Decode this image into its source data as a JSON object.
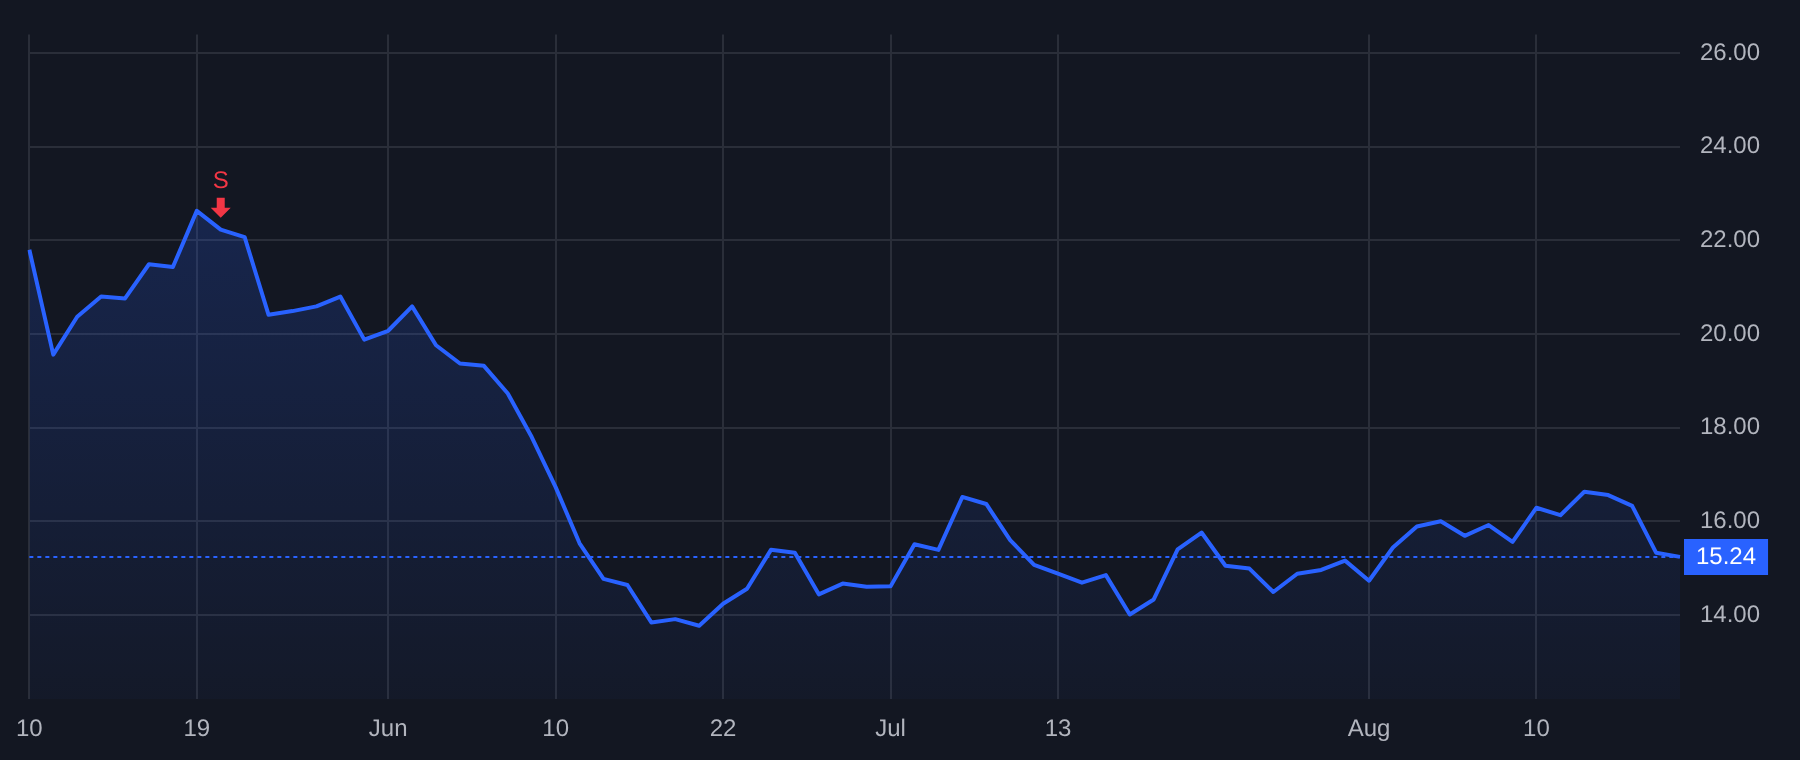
{
  "chart_data": {
    "type": "area",
    "categories": [
      "10",
      null,
      null,
      null,
      null,
      null,
      null,
      "19",
      null,
      null,
      null,
      null,
      null,
      null,
      null,
      "Jun",
      null,
      null,
      null,
      null,
      null,
      null,
      "10",
      null,
      null,
      null,
      null,
      null,
      null,
      "22",
      null,
      null,
      null,
      null,
      null,
      null,
      "Jul",
      null,
      null,
      null,
      null,
      null,
      null,
      "13",
      null,
      null,
      null,
      null,
      null,
      null,
      null,
      null,
      null,
      null,
      null,
      null,
      "Aug",
      null,
      null,
      null,
      null,
      null,
      null,
      "10",
      null,
      null,
      null,
      null,
      null,
      null
    ],
    "series": [
      {
        "color": "#2962ff",
        "values": [
          21.8,
          19.56,
          20.37,
          20.8,
          20.76,
          21.49,
          21.43,
          22.63,
          22.23,
          22.07,
          20.41,
          20.49,
          20.59,
          20.8,
          19.88,
          20.07,
          20.59,
          19.76,
          19.37,
          19.32,
          18.73,
          17.8,
          16.73,
          15.53,
          14.77,
          14.64,
          13.84,
          13.91,
          13.77,
          14.24,
          14.56,
          15.39,
          15.33,
          14.44,
          14.67,
          14.6,
          14.61,
          15.51,
          15.39,
          16.52,
          16.37,
          15.6,
          15.07,
          14.88,
          14.69,
          14.85,
          14.01,
          14.33,
          15.4,
          15.76,
          15.05,
          14.99,
          14.49,
          14.88,
          14.96,
          15.16,
          14.73,
          15.44,
          15.89,
          16.0,
          15.69,
          15.92,
          15.56,
          16.29,
          16.13,
          16.63,
          16.56,
          16.33,
          15.33,
          15.24
        ]
      }
    ],
    "ylim": [
      12.2,
      26.4
    ],
    "yticks": [
      {
        "value": 14,
        "label": "14.00"
      },
      {
        "value": 16,
        "label": "16.00"
      },
      {
        "value": 18,
        "label": "18.00"
      },
      {
        "value": 20,
        "label": "20.00"
      },
      {
        "value": 22,
        "label": "22.00"
      },
      {
        "value": 24,
        "label": "24.00"
      },
      {
        "value": 26,
        "label": "26.00"
      }
    ],
    "grid": true,
    "marker": "none",
    "line_style": "solid",
    "ref_lines": [
      {
        "axis": "y",
        "value": 15.24,
        "label": "15.24",
        "color": "#2962ff",
        "line_style": "dotted"
      }
    ],
    "annotations": [
      {
        "text": "S",
        "y": 22.23
      }
    ]
  }
}
